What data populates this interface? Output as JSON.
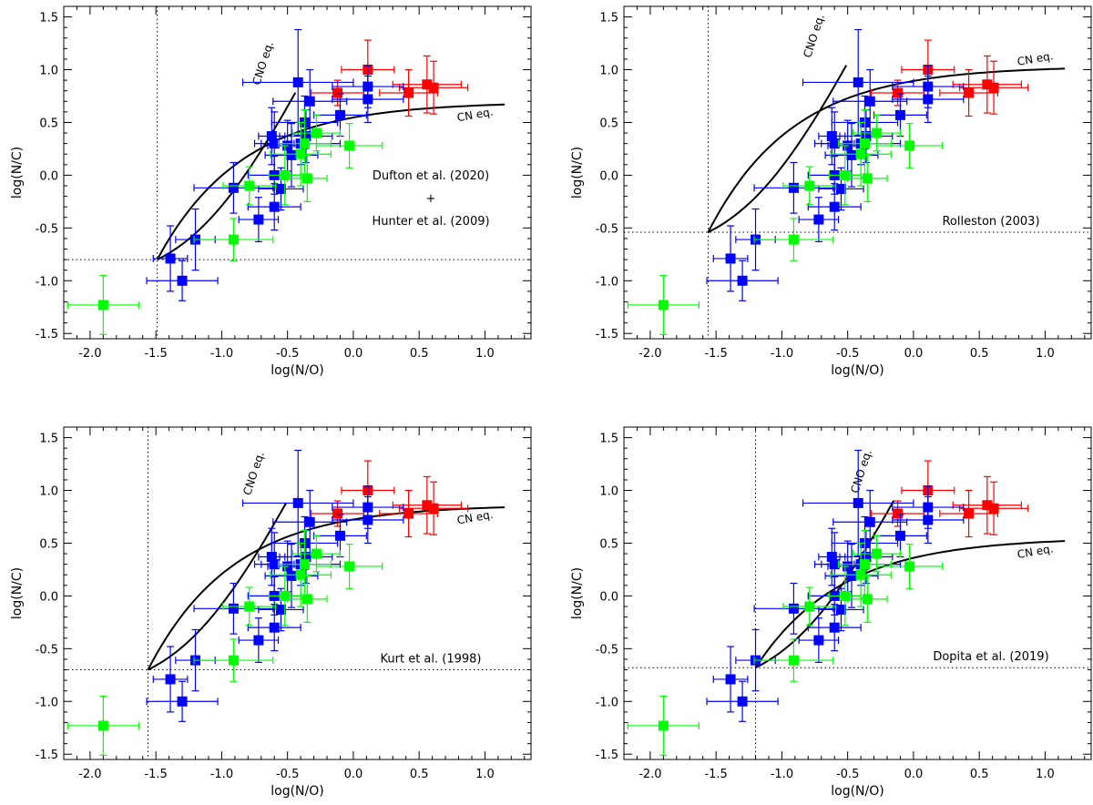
{
  "figure": {
    "panel_count": 4
  },
  "chart_data": [
    {
      "type": "scatter",
      "xlabel": "log(N/O)",
      "ylabel": "log(N/C)",
      "xlim": [
        -2.2,
        1.35
      ],
      "ylim": [
        -1.55,
        1.6
      ],
      "xticks": [
        -2.0,
        -1.5,
        -1.0,
        -0.5,
        0.0,
        0.5,
        1.0
      ],
      "xtick_labels": [
        "-2.0",
        "-1.5",
        "-1.0",
        "-0.5",
        "0.0",
        "0.5",
        "1.0"
      ],
      "yticks": [
        -1.5,
        -1.0,
        -0.5,
        0.0,
        0.5,
        1.0,
        1.5
      ],
      "ytick_labels": [
        "-1.5",
        "-1.0",
        "-0.5",
        "0.0",
        "0.5",
        "1.0",
        "1.5"
      ],
      "annotation_lines": [
        "Dufton et al. (2020)",
        "+",
        "Hunter et al. (2009)"
      ],
      "baseline": {
        "log_NO": -1.49,
        "log_NC": -0.8
      },
      "cno_label": "CNO eq.",
      "cn_label": "CN eq.",
      "cn_end": 0.67
    },
    {
      "type": "scatter",
      "xlabel": "log(N/O)",
      "ylabel": "log(N/C)",
      "xlim": [
        -2.2,
        1.35
      ],
      "ylim": [
        -1.55,
        1.6
      ],
      "xticks": [
        -2.0,
        -1.5,
        -1.0,
        -0.5,
        0.0,
        0.5,
        1.0
      ],
      "xtick_labels": [
        "-2.0",
        "-1.5",
        "-1.0",
        "-0.5",
        "0.0",
        "0.5",
        "1.0"
      ],
      "yticks": [
        -1.5,
        -1.0,
        -0.5,
        0.0,
        0.5,
        1.0,
        1.5
      ],
      "ytick_labels": [
        "-1.5",
        "-1.0",
        "-0.5",
        "0.0",
        "0.5",
        "1.0",
        "1.5"
      ],
      "annotation_lines": [
        "Rolleston (2003)"
      ],
      "baseline": {
        "log_NO": -1.56,
        "log_NC": -0.54
      },
      "cno_label": "CNO eq.",
      "cn_label": "CN eq.",
      "cn_end": 1.01
    },
    {
      "type": "scatter",
      "xlabel": "log(N/O)",
      "ylabel": "log(N/C)",
      "xlim": [
        -2.2,
        1.35
      ],
      "ylim": [
        -1.55,
        1.6
      ],
      "xticks": [
        -2.0,
        -1.5,
        -1.0,
        -0.5,
        0.0,
        0.5,
        1.0
      ],
      "xtick_labels": [
        "-2.0",
        "-1.5",
        "-1.0",
        "-0.5",
        "0.0",
        "0.5",
        "1.0"
      ],
      "yticks": [
        -1.5,
        -1.0,
        -0.5,
        0.0,
        0.5,
        1.0,
        1.5
      ],
      "ytick_labels": [
        "-1.5",
        "-1.0",
        "-0.5",
        "0.0",
        "0.5",
        "1.0",
        "1.5"
      ],
      "annotation_lines": [
        "Kurt et al. (1998)"
      ],
      "baseline": {
        "log_NO": -1.56,
        "log_NC": -0.7
      },
      "cno_label": "CNO eq.",
      "cn_label": "CN eq.",
      "cn_end": 0.84
    },
    {
      "type": "scatter",
      "xlabel": "log(N/O)",
      "ylabel": "log(N/C)",
      "xlim": [
        -2.2,
        1.35
      ],
      "ylim": [
        -1.55,
        1.6
      ],
      "xticks": [
        -2.0,
        -1.5,
        -1.0,
        -0.5,
        0.0,
        0.5,
        1.0
      ],
      "xtick_labels": [
        "-2.0",
        "-1.5",
        "-1.0",
        "-0.5",
        "0.0",
        "0.5",
        "1.0"
      ],
      "yticks": [
        -1.5,
        -1.0,
        -0.5,
        0.0,
        0.5,
        1.0,
        1.5
      ],
      "ytick_labels": [
        "-1.5",
        "-1.0",
        "-0.5",
        "0.0",
        "0.5",
        "1.0",
        "1.5"
      ],
      "annotation_lines": [
        "Dopita et al. (2019)"
      ],
      "baseline": {
        "log_NO": -1.2,
        "log_NC": -0.68
      },
      "cno_label": "CNO eq.",
      "cn_label": "CN eq.",
      "cn_end": 0.52
    }
  ],
  "shared_points": {
    "colors": {
      "red": "#ff0000",
      "blue": "#0000ff",
      "green": "#00ff00",
      "curve": "#000000",
      "guide": "#000000"
    },
    "series": [
      {
        "name": "red",
        "points": [
          {
            "x": -0.12,
            "y": 0.78,
            "xerr": 0.2,
            "yerr": 0.12
          },
          {
            "x": 0.11,
            "y": 1.0,
            "xerr": 0.2,
            "yerr": 0.28
          },
          {
            "x": 0.42,
            "y": 0.78,
            "xerr": 0.22,
            "yerr": 0.22
          },
          {
            "x": 0.56,
            "y": 0.86,
            "xerr": 0.26,
            "yerr": 0.27
          },
          {
            "x": 0.61,
            "y": 0.83,
            "xerr": 0.26,
            "yerr": 0.25
          }
        ]
      },
      {
        "name": "blue",
        "points": [
          {
            "x": -1.39,
            "y": -0.79,
            "xerr": 0.13,
            "yerr": 0.31
          },
          {
            "x": -1.3,
            "y": -1.0,
            "xerr": 0.27,
            "yerr": 0.19
          },
          {
            "x": -1.2,
            "y": -0.61,
            "xerr": 0.15,
            "yerr": 0.29
          },
          {
            "x": -0.91,
            "y": -0.12,
            "xerr": 0.3,
            "yerr": 0.24
          },
          {
            "x": -0.72,
            "y": -0.42,
            "xerr": 0.15,
            "yerr": 0.21
          },
          {
            "x": -0.62,
            "y": 0.37,
            "xerr": 0.1,
            "yerr": 0.27
          },
          {
            "x": -0.6,
            "y": -0.3,
            "xerr": 0.2,
            "yerr": 0.22
          },
          {
            "x": -0.6,
            "y": 0.0,
            "xerr": 0.2,
            "yerr": 0.18
          },
          {
            "x": -0.6,
            "y": 0.3,
            "xerr": 0.15,
            "yerr": 0.3
          },
          {
            "x": -0.55,
            "y": -0.13,
            "xerr": 0.17,
            "yerr": 0.2
          },
          {
            "x": -0.5,
            "y": 0.28,
            "xerr": 0.15,
            "yerr": 0.24
          },
          {
            "x": -0.47,
            "y": 0.19,
            "xerr": 0.2,
            "yerr": 0.3
          },
          {
            "x": -0.42,
            "y": 0.88,
            "xerr": 0.42,
            "yerr": 0.5
          },
          {
            "x": -0.4,
            "y": 0.3,
            "xerr": 0.3,
            "yerr": 0.2
          },
          {
            "x": -0.37,
            "y": 0.5,
            "xerr": 0.25,
            "yerr": 0.25
          },
          {
            "x": -0.36,
            "y": 0.37,
            "xerr": 0.2,
            "yerr": 0.25
          },
          {
            "x": -0.33,
            "y": 0.7,
            "xerr": 0.28,
            "yerr": 0.3
          },
          {
            "x": -0.1,
            "y": 0.57,
            "xerr": 0.2,
            "yerr": 0.2
          },
          {
            "x": 0.11,
            "y": 0.72,
            "xerr": 0.27,
            "yerr": 0.22
          },
          {
            "x": 0.11,
            "y": 0.84,
            "xerr": 0.27,
            "yerr": 0.2
          }
        ]
      },
      {
        "name": "green",
        "points": [
          {
            "x": -1.9,
            "y": -1.23,
            "xerr": 0.27,
            "yerr": 0.28
          },
          {
            "x": -0.91,
            "y": -0.61,
            "xerr": 0.3,
            "yerr": 0.2
          },
          {
            "x": -0.79,
            "y": -0.1,
            "xerr": 0.2,
            "yerr": 0.18
          },
          {
            "x": -0.52,
            "y": 0.0,
            "xerr": 0.12,
            "yerr": 0.28
          },
          {
            "x": -0.4,
            "y": 0.2,
            "xerr": 0.23,
            "yerr": 0.3
          },
          {
            "x": -0.37,
            "y": 0.3,
            "xerr": 0.2,
            "yerr": 0.32
          },
          {
            "x": -0.35,
            "y": -0.03,
            "xerr": 0.15,
            "yerr": 0.22
          },
          {
            "x": -0.28,
            "y": 0.4,
            "xerr": 0.18,
            "yerr": 0.17
          },
          {
            "x": -0.03,
            "y": 0.28,
            "xerr": 0.25,
            "yerr": 0.21
          }
        ]
      }
    ]
  }
}
